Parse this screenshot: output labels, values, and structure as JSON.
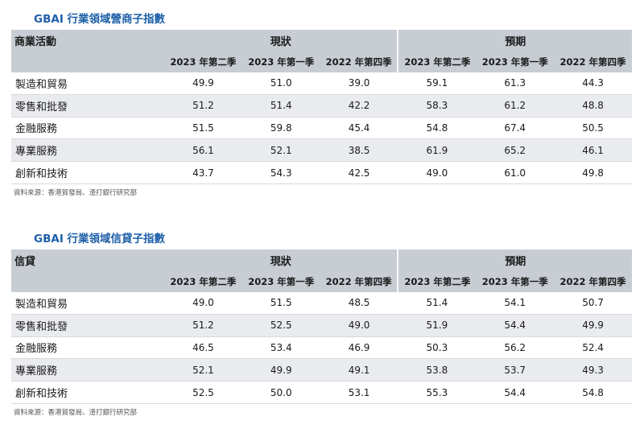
{
  "tables": [
    {
      "title": "GBAI 行業領域營商子指數",
      "row_header": "商業活動",
      "groups": [
        "現狀",
        "預期"
      ],
      "columns": [
        "2023 年第二季",
        "2023 年第一季",
        "2022 年第四季",
        "2023 年第二季",
        "2023 年第一季",
        "2022 年第四季"
      ],
      "rows": [
        {
          "label": "製造和貿易",
          "values": [
            "49.9",
            "51.0",
            "39.0",
            "59.1",
            "61.3",
            "44.3"
          ]
        },
        {
          "label": "零售和批發",
          "values": [
            "51.2",
            "51.4",
            "42.2",
            "58.3",
            "61.2",
            "48.8"
          ]
        },
        {
          "label": "金融服務",
          "values": [
            "51.5",
            "59.8",
            "45.4",
            "54.8",
            "67.4",
            "50.5"
          ]
        },
        {
          "label": "專業服務",
          "values": [
            "56.1",
            "52.1",
            "38.5",
            "61.9",
            "65.2",
            "46.1"
          ]
        },
        {
          "label": "創新和技術",
          "values": [
            "43.7",
            "54.3",
            "42.5",
            "49.0",
            "61.0",
            "49.8"
          ]
        }
      ],
      "source": "資料來源：香港貿發局、渣打銀行研究部"
    },
    {
      "title": "GBAI 行業領域信貸子指數",
      "row_header": "信貸",
      "groups": [
        "現狀",
        "預期"
      ],
      "columns": [
        "2023 年第二季",
        "2023 年第一季",
        "2022 年第四季",
        "2023 年第二季",
        "2023 年第一季",
        "2022 年第四季"
      ],
      "rows": [
        {
          "label": "製造和貿易",
          "values": [
            "49.0",
            "51.5",
            "48.5",
            "51.4",
            "54.1",
            "50.7"
          ]
        },
        {
          "label": "零售和批發",
          "values": [
            "51.2",
            "52.5",
            "49.0",
            "51.9",
            "54.4",
            "49.9"
          ]
        },
        {
          "label": "金融服務",
          "values": [
            "46.5",
            "53.4",
            "46.9",
            "50.3",
            "56.2",
            "52.4"
          ]
        },
        {
          "label": "專業服務",
          "values": [
            "52.1",
            "49.9",
            "49.1",
            "53.8",
            "53.7",
            "49.3"
          ]
        },
        {
          "label": "創新和技術",
          "values": [
            "52.5",
            "50.0",
            "53.1",
            "55.3",
            "54.4",
            "54.8"
          ]
        }
      ],
      "source": "資料來源：香港貿發局、渣打銀行研究部"
    }
  ]
}
